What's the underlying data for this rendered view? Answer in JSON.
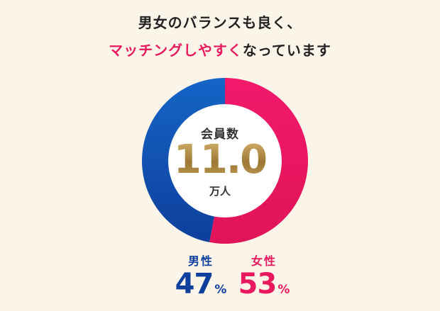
{
  "headline": {
    "line1": "男女のバランスも良く、",
    "line2_highlight": "マッチングしやすく",
    "line2_rest": "なっています"
  },
  "center": {
    "label": "会員数",
    "value": "11.0",
    "unit": "万人"
  },
  "colors": {
    "male": "#0E3F9C",
    "male_light": "#1565C7",
    "female": "#E8195F",
    "female_light": "#F2196A",
    "center_fill": "#FFFFFF",
    "gold": "#B08D47",
    "background": "#FBF4E9"
  },
  "chart_data": {
    "type": "pie",
    "categories": [
      "男性",
      "女性"
    ],
    "values": [
      47,
      53
    ],
    "unit": "%"
  },
  "stats": {
    "male": {
      "label": "男性",
      "value": "47",
      "unit": "%"
    },
    "female": {
      "label": "女性",
      "value": "53",
      "unit": "%"
    }
  }
}
